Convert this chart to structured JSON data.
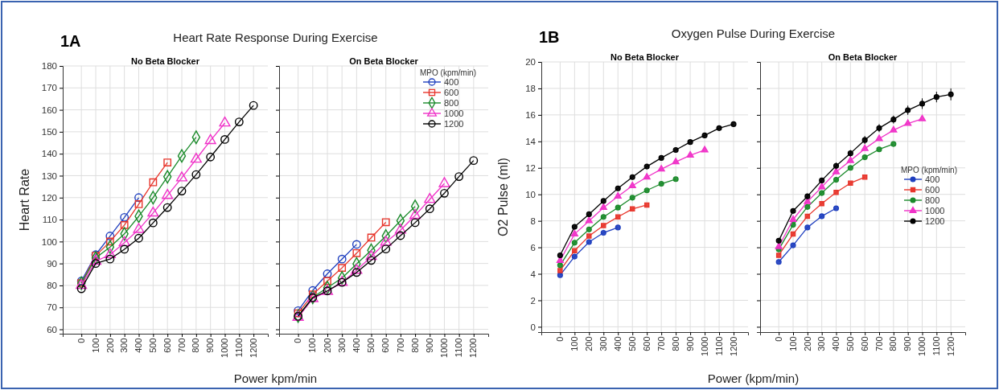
{
  "chart_data": [
    {
      "type": "line",
      "title": "No Beta Blocker",
      "annotations": [
        "1A",
        "Heart Rate Response During Exercise"
      ],
      "xlabel": "Power kpm/min",
      "ylabel": "Heart Rate",
      "xlim": [
        -130,
        1300
      ],
      "xticks": [
        0,
        100,
        200,
        300,
        400,
        500,
        600,
        700,
        800,
        900,
        1000,
        1100,
        1200
      ],
      "ylim": [
        58,
        180
      ],
      "yticks": [
        60,
        70,
        80,
        90,
        100,
        110,
        120,
        130,
        140,
        150,
        160,
        170,
        180
      ],
      "grid": true,
      "legend": false,
      "series": [
        {
          "color": "#1f3fbf",
          "marker": "circle",
          "x": [
            0,
            100,
            200,
            300,
            400
          ],
          "values": [
            82,
            94,
            102.5,
            111,
            120
          ]
        },
        {
          "color": "#e8352b",
          "marker": "square",
          "x": [
            0,
            100,
            200,
            300,
            400,
            500,
            600
          ],
          "values": [
            81,
            93.5,
            100,
            107.5,
            117,
            127,
            136
          ]
        },
        {
          "color": "#1a8a2a",
          "marker": "diamond",
          "x": [
            0,
            100,
            200,
            300,
            400,
            500,
            600,
            700,
            800
          ],
          "values": [
            81,
            92.5,
            97.5,
            103.5,
            111.5,
            120,
            129.5,
            139,
            147.5
          ]
        },
        {
          "color": "#f032c8",
          "marker": "triangle",
          "x": [
            0,
            100,
            200,
            300,
            400,
            500,
            600,
            700,
            800,
            900,
            1000
          ],
          "values": [
            80,
            91,
            94,
            99.5,
            105.5,
            113,
            121,
            129,
            137.5,
            146,
            154
          ]
        },
        {
          "color": "#000000",
          "marker": "circle",
          "x": [
            0,
            100,
            200,
            300,
            400,
            500,
            600,
            700,
            800,
            900,
            1000,
            1100,
            1200
          ],
          "values": [
            78.5,
            90,
            92,
            96.5,
            101.5,
            108.5,
            115.5,
            123,
            130.5,
            138.5,
            146.5,
            154.5,
            162
          ]
        }
      ]
    },
    {
      "type": "line",
      "title": "On Beta Blocker",
      "legend_title": "MPO (kpm/min)",
      "xlim": [
        -130,
        1300
      ],
      "xticks": [
        0,
        100,
        200,
        300,
        400,
        500,
        600,
        700,
        800,
        900,
        1000,
        1100,
        1200
      ],
      "ylim": [
        58,
        180
      ],
      "yticks": [
        60,
        70,
        80,
        90,
        100,
        110,
        120,
        130,
        140,
        150,
        160,
        170,
        180
      ],
      "tick_labels": "x",
      "grid": true,
      "legend": "top right",
      "series": [
        {
          "name": "400",
          "color": "#1f3fbf",
          "marker": "circle",
          "x": [
            0,
            100,
            200,
            300,
            400
          ],
          "values": [
            68.5,
            77.7,
            85.3,
            92,
            98.7
          ]
        },
        {
          "name": "600",
          "color": "#e8352b",
          "marker": "square",
          "x": [
            0,
            100,
            200,
            300,
            400,
            500,
            600
          ],
          "values": [
            67.3,
            75.9,
            82,
            88,
            94.7,
            101.8,
            108.8
          ]
        },
        {
          "name": "800",
          "color": "#1a8a2a",
          "marker": "diamond",
          "x": [
            0,
            100,
            200,
            300,
            400,
            500,
            600,
            700,
            800
          ],
          "values": [
            66,
            74.6,
            79,
            83.4,
            89.8,
            96,
            102.5,
            109.5,
            116
          ]
        },
        {
          "name": "1000",
          "color": "#f032c8",
          "marker": "triangle",
          "x": [
            0,
            100,
            200,
            300,
            400,
            500,
            600,
            700,
            800,
            900,
            1000
          ],
          "values": [
            65.5,
            74,
            77.3,
            81.4,
            86.9,
            93.2,
            99.7,
            105.2,
            111.9,
            119.2,
            126.4
          ]
        },
        {
          "name": "1200",
          "color": "#000000",
          "marker": "circle",
          "x": [
            0,
            100,
            200,
            300,
            400,
            500,
            600,
            700,
            800,
            900,
            1000,
            1100,
            1200
          ],
          "values": [
            65.9,
            74.4,
            77.5,
            81.4,
            85.9,
            91.4,
            96.6,
            102.7,
            108.6,
            114.9,
            122,
            129.6,
            136.9
          ]
        }
      ]
    },
    {
      "type": "line",
      "title": "No Beta Blocker",
      "annotations": [
        "1B",
        "Oxygen Pulse During Exercise"
      ],
      "xlabel": "Power (kpm/min)",
      "ylabel": "O2 Pulse (ml)",
      "xlim": [
        -130,
        1300
      ],
      "xticks": [
        0,
        100,
        200,
        300,
        400,
        500,
        600,
        700,
        800,
        900,
        1000,
        1100,
        1200
      ],
      "ylim": [
        -0.4,
        20
      ],
      "yticks": [
        0,
        2,
        4,
        6,
        8,
        10,
        12,
        14,
        16,
        18,
        20
      ],
      "grid": true,
      "legend": false,
      "series": [
        {
          "color": "#1f3fbf",
          "marker": "circle",
          "x": [
            0,
            100,
            200,
            300,
            400
          ],
          "values": [
            3.9,
            5.3,
            6.4,
            7.1,
            7.5
          ]
        },
        {
          "color": "#e8352b",
          "marker": "square",
          "x": [
            0,
            100,
            200,
            300,
            400,
            500,
            600
          ],
          "values": [
            4.25,
            5.75,
            6.85,
            7.65,
            8.3,
            8.9,
            9.2
          ]
        },
        {
          "color": "#1a8a2a",
          "marker": "circle",
          "x": [
            0,
            100,
            200,
            300,
            400,
            500,
            600,
            700,
            800
          ],
          "values": [
            4.65,
            6.35,
            7.35,
            8.3,
            9,
            9.75,
            10.3,
            10.8,
            11.15
          ]
        },
        {
          "color": "#f032c8",
          "marker": "triangle",
          "x": [
            0,
            100,
            200,
            300,
            400,
            500,
            600,
            700,
            800,
            900,
            1000
          ],
          "values": [
            5,
            7,
            8,
            9,
            9.85,
            10.65,
            11.3,
            11.9,
            12.45,
            12.95,
            13.35
          ]
        },
        {
          "color": "#000000",
          "marker": "circle",
          "x": [
            0,
            100,
            200,
            300,
            400,
            500,
            600,
            700,
            800,
            900,
            1000,
            1100,
            1200
          ],
          "values": [
            5.4,
            7.55,
            8.5,
            9.5,
            10.45,
            11.3,
            12.1,
            12.75,
            13.35,
            13.95,
            14.45,
            15,
            15.3
          ]
        }
      ]
    },
    {
      "type": "line",
      "title": "On Beta Blocker",
      "legend_title": "MPO (kpm/min)",
      "xlim": [
        -130,
        1300
      ],
      "xticks": [
        0,
        100,
        200,
        300,
        400,
        500,
        600,
        700,
        800,
        900,
        1000,
        1100,
        1200
      ],
      "ylim": [
        -0.4,
        20
      ],
      "yticks": [
        0,
        2,
        4,
        6,
        8,
        10,
        12,
        14,
        16,
        18,
        20
      ],
      "tick_labels": "x",
      "grid": true,
      "legend": "right",
      "series": [
        {
          "name": "400",
          "color": "#1f3fbf",
          "marker": "circle",
          "x": [
            0,
            100,
            200,
            300,
            400
          ],
          "values": [
            4.9,
            6.15,
            7.5,
            8.35,
            8.95
          ]
        },
        {
          "name": "600",
          "color": "#e8352b",
          "marker": "square",
          "x": [
            0,
            100,
            200,
            300,
            400,
            500,
            600
          ],
          "values": [
            5.4,
            7,
            8.35,
            9.3,
            10.15,
            10.85,
            11.3
          ]
        },
        {
          "name": "800",
          "color": "#1a8a2a",
          "marker": "circle",
          "x": [
            0,
            100,
            200,
            300,
            400,
            500,
            600,
            700,
            800
          ],
          "values": [
            5.85,
            7.7,
            9.05,
            10.1,
            11.1,
            12,
            12.8,
            13.4,
            13.8
          ]
        },
        {
          "name": "1000",
          "color": "#f032c8",
          "marker": "triangle",
          "x": [
            0,
            100,
            200,
            300,
            400,
            500,
            600,
            700,
            800,
            900,
            1000
          ],
          "values": [
            6.05,
            8.1,
            9.45,
            10.55,
            11.7,
            12.55,
            13.45,
            14.2,
            14.85,
            15.35,
            15.7
          ]
        },
        {
          "name": "1200",
          "color": "#000000",
          "marker": "circle",
          "x": [
            0,
            100,
            200,
            300,
            400,
            500,
            600,
            700,
            800,
            900,
            1000,
            1100,
            1200
          ],
          "values": [
            6.5,
            8.75,
            9.85,
            11.05,
            12.15,
            13.1,
            14.1,
            15,
            15.65,
            16.35,
            16.85,
            17.35,
            17.55
          ],
          "errors": [
            0.2,
            0.2,
            0.2,
            0.2,
            0.25,
            0.25,
            0.3,
            0.3,
            0.3,
            0.35,
            0.4,
            0.4,
            0.45
          ]
        }
      ]
    }
  ]
}
